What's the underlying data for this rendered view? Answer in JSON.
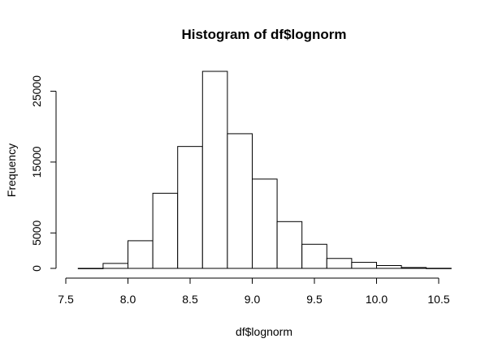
{
  "chart_data": {
    "type": "bar",
    "title": "Histogram of df$lognorm",
    "xlabel": "df$lognorm",
    "ylabel": "Frequency",
    "bins": [
      {
        "x0": 7.6,
        "x1": 7.8,
        "value": 5
      },
      {
        "x0": 7.8,
        "x1": 8.0,
        "value": 700
      },
      {
        "x0": 8.0,
        "x1": 8.2,
        "value": 3900
      },
      {
        "x0": 8.2,
        "x1": 8.4,
        "value": 10600
      },
      {
        "x0": 8.4,
        "x1": 8.6,
        "value": 17200
      },
      {
        "x0": 8.6,
        "x1": 8.8,
        "value": 27800
      },
      {
        "x0": 8.8,
        "x1": 9.0,
        "value": 19000
      },
      {
        "x0": 9.0,
        "x1": 9.2,
        "value": 12600
      },
      {
        "x0": 9.2,
        "x1": 9.4,
        "value": 6600
      },
      {
        "x0": 9.4,
        "x1": 9.6,
        "value": 3400
      },
      {
        "x0": 9.6,
        "x1": 9.8,
        "value": 1400
      },
      {
        "x0": 9.8,
        "x1": 10.0,
        "value": 850
      },
      {
        "x0": 10.0,
        "x1": 10.2,
        "value": 400
      },
      {
        "x0": 10.2,
        "x1": 10.4,
        "value": 120
      },
      {
        "x0": 10.4,
        "x1": 10.6,
        "value": 15
      }
    ],
    "xlim": [
      7.5,
      10.5
    ],
    "ylim": [
      0,
      27800
    ],
    "x_ticks": [
      7.5,
      8.0,
      8.5,
      9.0,
      9.5,
      10.0,
      10.5
    ],
    "x_tick_labels": [
      "7.5",
      "8.0",
      "8.5",
      "9.0",
      "9.5",
      "10.0",
      "10.5"
    ],
    "y_ticks": [
      0,
      5000,
      15000,
      25000
    ],
    "y_tick_labels": [
      "0",
      "5000",
      "15000",
      "25000"
    ],
    "grid": false,
    "legend": "none"
  }
}
